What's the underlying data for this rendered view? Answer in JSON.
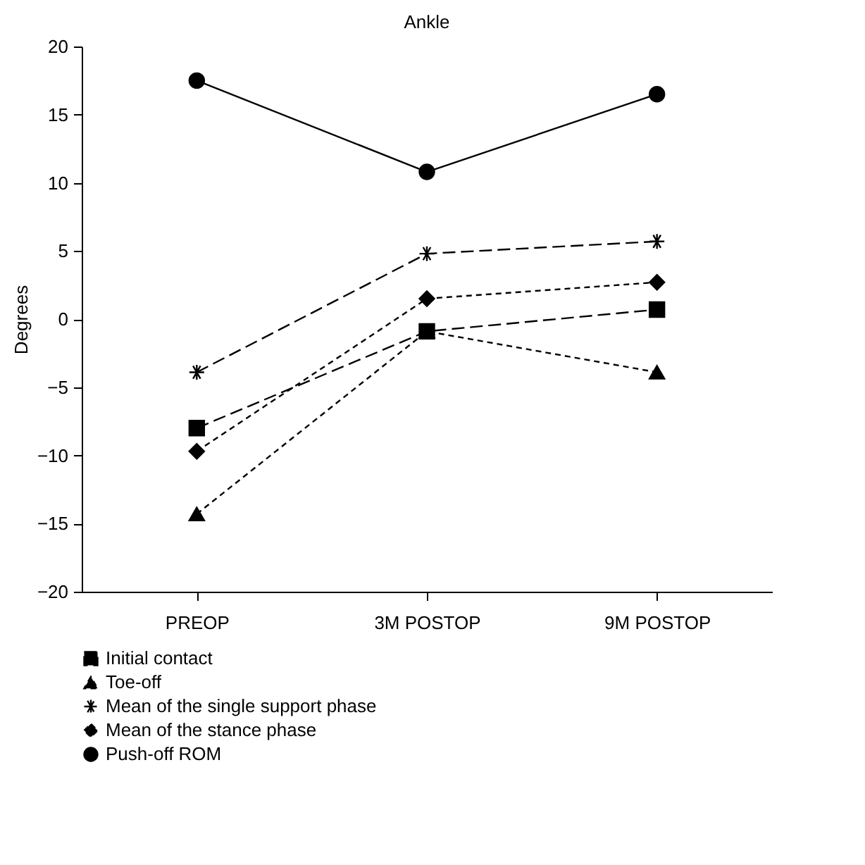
{
  "chart_data": {
    "type": "line",
    "title": "Ankle",
    "ylabel": "Degrees",
    "categories": [
      "PREOP",
      "3M POSTOP",
      "9M POSTOP"
    ],
    "ylim": [
      -20,
      20
    ],
    "yticks": [
      -20,
      -15,
      -10,
      -5,
      0,
      5,
      10,
      15,
      20
    ],
    "grid": false,
    "legend": "bottom",
    "series": [
      {
        "name": "Initial contact",
        "color": "#000000",
        "marker": "square",
        "line_style": "dashed",
        "values": [
          -8.0,
          -0.9,
          0.7
        ]
      },
      {
        "name": "Toe-off",
        "color": "#000000",
        "marker": "triangle",
        "line_style": "dotted",
        "values": [
          -14.3,
          -0.9,
          -3.9
        ]
      },
      {
        "name": "Mean of the single support phase",
        "color": "#000000",
        "marker": "cross",
        "line_style": "dashed",
        "values": [
          -3.9,
          4.8,
          5.7
        ]
      },
      {
        "name": "Mean of the stance phase",
        "color": "#000000",
        "marker": "diamond",
        "line_style": "dotted",
        "values": [
          -9.7,
          1.5,
          2.7
        ]
      },
      {
        "name": "Push-off ROM",
        "color": "#000000",
        "marker": "circle",
        "line_style": "solid",
        "values": [
          17.5,
          10.8,
          16.5
        ]
      }
    ]
  }
}
